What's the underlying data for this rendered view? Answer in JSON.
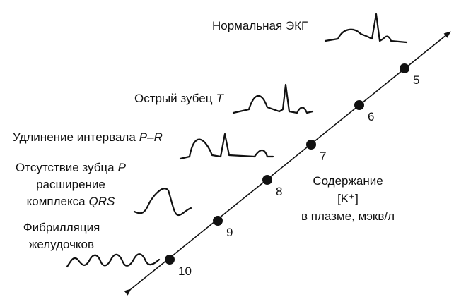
{
  "ecg_labels": [
    {
      "lines": [
        {
          "text": "Нормальная ЭКГ"
        }
      ]
    },
    {
      "lines": [
        {
          "text": "Острый зубец",
          "italic": "T"
        }
      ]
    },
    {
      "lines": [
        {
          "text": "Удлинение интервала",
          "italic": "P–R"
        }
      ]
    },
    {
      "lines": [
        {
          "text": "Отсутствие зубца",
          "italic": "P"
        },
        {
          "text": "расширение"
        },
        {
          "text": "комплекса",
          "italic": "QRS"
        }
      ]
    },
    {
      "lines": [
        {
          "text": "Фибрилляция"
        },
        {
          "text": "желудочков"
        }
      ]
    }
  ],
  "axis_label": [
    "Содержание",
    "[K⁺]",
    "в плазме, мэкв/л"
  ],
  "points": [
    5,
    6,
    7,
    8,
    9,
    10
  ]
}
